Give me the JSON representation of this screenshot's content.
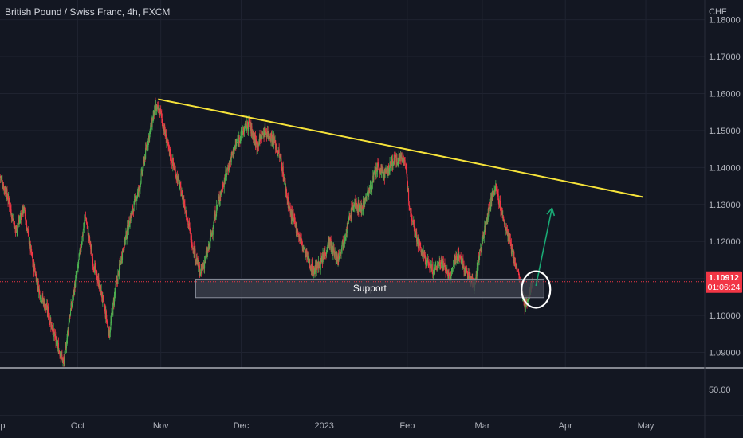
{
  "header": {
    "title": "British Pound / Swiss Franc, 4h, FXCM"
  },
  "chart_data": {
    "type": "candlestick",
    "currency_label": "CHF",
    "y_ticks": [
      1.09,
      1.1,
      1.11,
      1.12,
      1.13,
      1.14,
      1.15,
      1.16,
      1.17,
      1.18
    ],
    "y_tick_labels": [
      "1.09000",
      "1.10000",
      "1.11000",
      "1.12000",
      "1.13000",
      "1.14000",
      "1.15000",
      "1.16000",
      "1.17000",
      "1.18000"
    ],
    "ylim": [
      1.0858,
      1.1853
    ],
    "x_labels": [
      {
        "label": "Sep",
        "x": "2022-09-01"
      },
      {
        "label": "Oct",
        "x": "2022-10-01"
      },
      {
        "label": "Nov",
        "x": "2022-11-01"
      },
      {
        "label": "Dec",
        "x": "2022-12-01"
      },
      {
        "label": "2023",
        "x": "2023-01-01"
      },
      {
        "label": "Feb",
        "x": "2023-02-01"
      },
      {
        "label": "Mar",
        "x": "2023-03-01"
      },
      {
        "label": "Apr",
        "x": "2023-04-01"
      },
      {
        "label": "May",
        "x": "2023-05-01"
      }
    ],
    "xlim": [
      "2022-09-02",
      "2023-05-23"
    ],
    "price_path": [
      [
        "2022-09-02",
        1.138
      ],
      [
        "2022-09-05",
        1.132
      ],
      [
        "2022-09-08",
        1.123
      ],
      [
        "2022-09-11",
        1.129
      ],
      [
        "2022-09-14",
        1.116
      ],
      [
        "2022-09-17",
        1.106
      ],
      [
        "2022-09-20",
        1.101
      ],
      [
        "2022-09-23",
        1.093
      ],
      [
        "2022-09-26",
        1.087
      ],
      [
        "2022-09-28",
        1.099
      ],
      [
        "2022-10-01",
        1.112
      ],
      [
        "2022-10-04",
        1.127
      ],
      [
        "2022-10-07",
        1.114
      ],
      [
        "2022-10-10",
        1.106
      ],
      [
        "2022-10-13",
        1.095
      ],
      [
        "2022-10-15",
        1.106
      ],
      [
        "2022-10-18",
        1.118
      ],
      [
        "2022-10-21",
        1.127
      ],
      [
        "2022-10-24",
        1.134
      ],
      [
        "2022-10-27",
        1.146
      ],
      [
        "2022-10-30",
        1.156
      ],
      [
        "2022-11-01",
        1.155
      ],
      [
        "2022-11-04",
        1.145
      ],
      [
        "2022-11-07",
        1.138
      ],
      [
        "2022-11-10",
        1.13
      ],
      [
        "2022-11-13",
        1.119
      ],
      [
        "2022-11-16",
        1.111
      ],
      [
        "2022-11-19",
        1.118
      ],
      [
        "2022-11-22",
        1.129
      ],
      [
        "2022-11-25",
        1.137
      ],
      [
        "2022-11-28",
        1.144
      ],
      [
        "2022-12-01",
        1.149
      ],
      [
        "2022-12-04",
        1.152
      ],
      [
        "2022-12-07",
        1.146
      ],
      [
        "2022-12-10",
        1.15
      ],
      [
        "2022-12-13",
        1.148
      ],
      [
        "2022-12-16",
        1.142
      ],
      [
        "2022-12-19",
        1.129
      ],
      [
        "2022-12-22",
        1.123
      ],
      [
        "2022-12-25",
        1.117
      ],
      [
        "2022-12-28",
        1.112
      ],
      [
        "2022-12-31",
        1.114
      ],
      [
        "2023-01-03",
        1.12
      ],
      [
        "2023-01-06",
        1.115
      ],
      [
        "2023-01-09",
        1.122
      ],
      [
        "2023-01-12",
        1.13
      ],
      [
        "2023-01-15",
        1.129
      ],
      [
        "2023-01-18",
        1.134
      ],
      [
        "2023-01-21",
        1.14
      ],
      [
        "2023-01-24",
        1.138
      ],
      [
        "2023-01-27",
        1.142
      ],
      [
        "2023-01-31",
        1.143
      ],
      [
        "2023-02-02",
        1.13
      ],
      [
        "2023-02-05",
        1.12
      ],
      [
        "2023-02-08",
        1.115
      ],
      [
        "2023-02-11",
        1.112
      ],
      [
        "2023-02-14",
        1.115
      ],
      [
        "2023-02-17",
        1.11
      ],
      [
        "2023-02-20",
        1.117
      ],
      [
        "2023-02-23",
        1.112
      ],
      [
        "2023-02-26",
        1.108
      ],
      [
        "2023-03-01",
        1.12
      ],
      [
        "2023-03-03",
        1.127
      ],
      [
        "2023-03-06",
        1.135
      ],
      [
        "2023-03-09",
        1.126
      ],
      [
        "2023-03-12",
        1.118
      ],
      [
        "2023-03-15",
        1.11
      ],
      [
        "2023-03-17",
        1.102
      ],
      [
        "2023-03-19",
        1.107
      ],
      [
        "2023-03-20",
        1.1091
      ]
    ],
    "last_price": {
      "label": "1.10912",
      "value": 1.10912
    },
    "countdown": "01:06:24",
    "support_zone": {
      "label": "Support",
      "from": "2022-11-14",
      "to": "2023-03-24",
      "low": 1.1048,
      "high": 1.1098
    },
    "trendline": {
      "from": [
        "2022-10-31",
        1.1585
      ],
      "to": [
        "2023-04-30",
        1.132
      ]
    },
    "arrow": {
      "from": [
        "2023-03-21",
        1.108
      ],
      "to": [
        "2023-03-27",
        1.129
      ]
    },
    "circle": {
      "x": "2023-03-21",
      "y": 1.107
    },
    "indicator_pane": {
      "tick_label": "50.00"
    },
    "colors": {
      "background": "#131722",
      "up": "#4caf50",
      "down": "#f23645",
      "trendline": "#f5e23a",
      "arrow": "#19a974",
      "support_fill": "#3a3e4b",
      "price_line": "#f23645",
      "grid": "#1f2330",
      "text": "#b2b5be"
    }
  }
}
